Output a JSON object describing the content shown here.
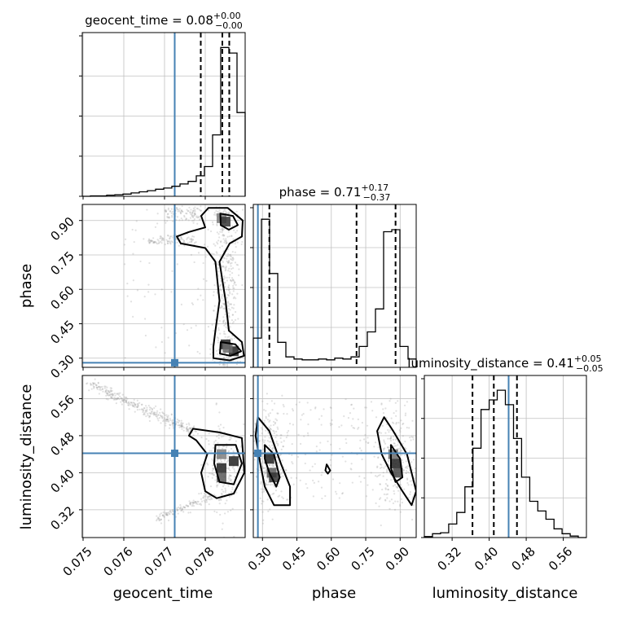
{
  "chart_data": {
    "type": "scatter",
    "parameters": [
      "geocent_time",
      "phase",
      "luminosity_distance"
    ],
    "truth": {
      "geocent_time": 0.07725,
      "phase": 0.28,
      "luminosity_distance": 0.442
    },
    "colors": {
      "truth": "#4682b4",
      "contour": "#000000",
      "grid": "#c0c0c0",
      "points": "#9a9a9a"
    },
    "grid": true,
    "titles": {
      "geocent_time": {
        "name": "geocent_time",
        "value": "0.08",
        "plus": "+0.00",
        "minus": "−0.00"
      },
      "phase": {
        "name": "phase",
        "value": "0.71",
        "plus": "+0.17",
        "minus": "−0.37"
      },
      "luminosity_distance": {
        "name": "luminosity_distance",
        "value": "0.41",
        "plus": "+0.05",
        "minus": "−0.05"
      }
    },
    "axes": {
      "geocent_time": {
        "label": "geocent_time",
        "range": [
          0.07498,
          0.07898
        ],
        "ticks": [
          0.075,
          0.076,
          0.077,
          0.078
        ],
        "tick_labels": [
          "0.075",
          "0.076",
          "0.077",
          "0.078"
        ]
      },
      "phase": {
        "label": "phase",
        "range": [
          0.26,
          0.97
        ],
        "ticks": [
          0.3,
          0.45,
          0.6,
          0.75,
          0.9
        ],
        "tick_labels": [
          "0.30",
          "0.45",
          "0.60",
          "0.75",
          "0.90"
        ]
      },
      "luminosity_distance": {
        "label": "luminosity_distance",
        "range": [
          0.26,
          0.61
        ],
        "ticks": [
          0.32,
          0.4,
          0.48,
          0.56
        ],
        "tick_labels": [
          "0.32",
          "0.40",
          "0.48",
          "0.56"
        ]
      }
    },
    "quantiles": {
      "geocent_time": [
        0.07789,
        0.07842,
        0.07859
      ],
      "phase": [
        0.33,
        0.71,
        0.88
      ],
      "luminosity_distance": [
        0.364,
        0.41,
        0.46
      ]
    },
    "histograms": {
      "geocent_time": {
        "edges": [
          0.07498,
          0.07518,
          0.07538,
          0.07558,
          0.07578,
          0.07598,
          0.07618,
          0.07638,
          0.07658,
          0.07678,
          0.07698,
          0.07718,
          0.07738,
          0.07758,
          0.07778,
          0.07798,
          0.07818,
          0.07838,
          0.07858,
          0.07878,
          0.07898
        ],
        "counts": [
          0,
          1,
          1,
          3,
          4,
          6,
          9,
          12,
          15,
          19,
          22,
          27,
          33,
          40,
          55,
          80,
          165,
          400,
          385,
          225
        ]
      },
      "phase": {
        "edges": [
          0.26,
          0.2955,
          0.331,
          0.3665,
          0.402,
          0.4375,
          0.473,
          0.5085,
          0.544,
          0.5795,
          0.615,
          0.6505,
          0.686,
          0.7215,
          0.757,
          0.7925,
          0.828,
          0.8635,
          0.899,
          0.9345,
          0.97
        ],
        "counts": [
          70,
          355,
          225,
          60,
          25,
          20,
          18,
          18,
          20,
          18,
          22,
          20,
          25,
          50,
          85,
          140,
          325,
          330,
          50,
          20
        ]
      },
      "luminosity_distance": {
        "edges": [
          0.26,
          0.2775,
          0.295,
          0.3125,
          0.33,
          0.3475,
          0.365,
          0.3825,
          0.4,
          0.4175,
          0.435,
          0.4525,
          0.47,
          0.4875,
          0.505,
          0.5225,
          0.54,
          0.5575,
          0.575,
          0.5925,
          0.61
        ],
        "counts": [
          2,
          8,
          10,
          28,
          52,
          105,
          185,
          265,
          285,
          305,
          275,
          205,
          125,
          75,
          55,
          38,
          18,
          8,
          3,
          0
        ]
      }
    },
    "pairs": [
      {
        "x": "geocent_time",
        "y": "phase",
        "contours": [
          [
            [
              0.07808,
              0.955
            ],
            [
              0.07855,
              0.955
            ],
            [
              0.07892,
              0.9
            ],
            [
              0.0789,
              0.83
            ],
            [
              0.0786,
              0.8
            ],
            [
              0.07835,
              0.72
            ],
            [
              0.0785,
              0.55
            ],
            [
              0.07858,
              0.42
            ],
            [
              0.0789,
              0.37
            ],
            [
              0.07895,
              0.31
            ],
            [
              0.0786,
              0.29
            ],
            [
              0.0782,
              0.3
            ],
            [
              0.0782,
              0.35
            ],
            [
              0.07825,
              0.42
            ],
            [
              0.07835,
              0.55
            ],
            [
              0.07825,
              0.72
            ],
            [
              0.078,
              0.78
            ],
            [
              0.0774,
              0.8
            ],
            [
              0.0773,
              0.83
            ],
            [
              0.0776,
              0.85
            ],
            [
              0.078,
              0.87
            ],
            [
              0.0779,
              0.92
            ]
          ],
          [
            [
              0.07837,
              0.93
            ],
            [
              0.07868,
              0.92
            ],
            [
              0.0788,
              0.88
            ],
            [
              0.07858,
              0.86
            ],
            [
              0.07838,
              0.88
            ]
          ],
          [
            [
              0.07838,
              0.37
            ],
            [
              0.07874,
              0.36
            ],
            [
              0.07888,
              0.33
            ],
            [
              0.07862,
              0.31
            ],
            [
              0.07836,
              0.32
            ]
          ]
        ],
        "filled": [
          {
            "x": 0.0784,
            "y": 0.91,
            "level": 0.4
          },
          {
            "x": 0.0785,
            "y": 0.895,
            "level": 0.8
          },
          {
            "x": 0.0785,
            "y": 0.36,
            "level": 0.9
          },
          {
            "x": 0.0787,
            "y": 0.33,
            "level": 0.9
          },
          {
            "x": 0.07855,
            "y": 0.345,
            "level": 0.5
          }
        ]
      },
      {
        "x": "geocent_time",
        "y": "luminosity_distance",
        "contours": [
          [
            [
              0.0777,
              0.495
            ],
            [
              0.07835,
              0.487
            ],
            [
              0.0789,
              0.475
            ],
            [
              0.07896,
              0.4
            ],
            [
              0.0787,
              0.355
            ],
            [
              0.07828,
              0.345
            ],
            [
              0.078,
              0.36
            ],
            [
              0.0779,
              0.4
            ],
            [
              0.07805,
              0.44
            ],
            [
              0.07778,
              0.47
            ],
            [
              0.0776,
              0.48
            ]
          ],
          [
            [
              0.07825,
              0.46
            ],
            [
              0.07875,
              0.46
            ],
            [
              0.0789,
              0.42
            ],
            [
              0.0787,
              0.375
            ],
            [
              0.07835,
              0.38
            ],
            [
              0.07822,
              0.42
            ]
          ]
        ],
        "filled": [
          {
            "x": 0.0784,
            "y": 0.44,
            "level": 0.4
          },
          {
            "x": 0.0784,
            "y": 0.41,
            "level": 0.9
          },
          {
            "x": 0.0787,
            "y": 0.425,
            "level": 0.9
          },
          {
            "x": 0.0784,
            "y": 0.39,
            "level": 0.6
          }
        ]
      },
      {
        "x": "phase",
        "y": "luminosity_distance",
        "contours": [
          [
            [
              0.28,
              0.52
            ],
            [
              0.33,
              0.49
            ],
            [
              0.38,
              0.42
            ],
            [
              0.42,
              0.37
            ],
            [
              0.42,
              0.33
            ],
            [
              0.35,
              0.33
            ],
            [
              0.31,
              0.37
            ],
            [
              0.29,
              0.42
            ],
            [
              0.27,
              0.48
            ]
          ],
          [
            [
              0.31,
              0.46
            ],
            [
              0.35,
              0.44
            ],
            [
              0.375,
              0.39
            ],
            [
              0.36,
              0.37
            ],
            [
              0.33,
              0.4
            ],
            [
              0.31,
              0.43
            ]
          ],
          [
            [
              0.83,
              0.52
            ],
            [
              0.87,
              0.49
            ],
            [
              0.93,
              0.44
            ],
            [
              0.97,
              0.36
            ],
            [
              0.95,
              0.33
            ],
            [
              0.91,
              0.36
            ],
            [
              0.86,
              0.4
            ],
            [
              0.82,
              0.44
            ],
            [
              0.8,
              0.49
            ]
          ],
          [
            [
              0.86,
              0.46
            ],
            [
              0.9,
              0.43
            ],
            [
              0.91,
              0.39
            ],
            [
              0.88,
              0.38
            ],
            [
              0.86,
              0.41
            ]
          ],
          [
            [
              0.58,
              0.418
            ],
            [
              0.595,
              0.405
            ],
            [
              0.585,
              0.398
            ],
            [
              0.574,
              0.405
            ]
          ]
        ],
        "filled": [
          {
            "x": 0.33,
            "y": 0.43,
            "level": 0.9
          },
          {
            "x": 0.34,
            "y": 0.4,
            "level": 0.6
          },
          {
            "x": 0.35,
            "y": 0.39,
            "level": 0.8
          },
          {
            "x": 0.88,
            "y": 0.42,
            "level": 0.9
          },
          {
            "x": 0.87,
            "y": 0.44,
            "level": 0.5
          },
          {
            "x": 0.89,
            "y": 0.4,
            "level": 0.7
          }
        ]
      }
    ]
  }
}
